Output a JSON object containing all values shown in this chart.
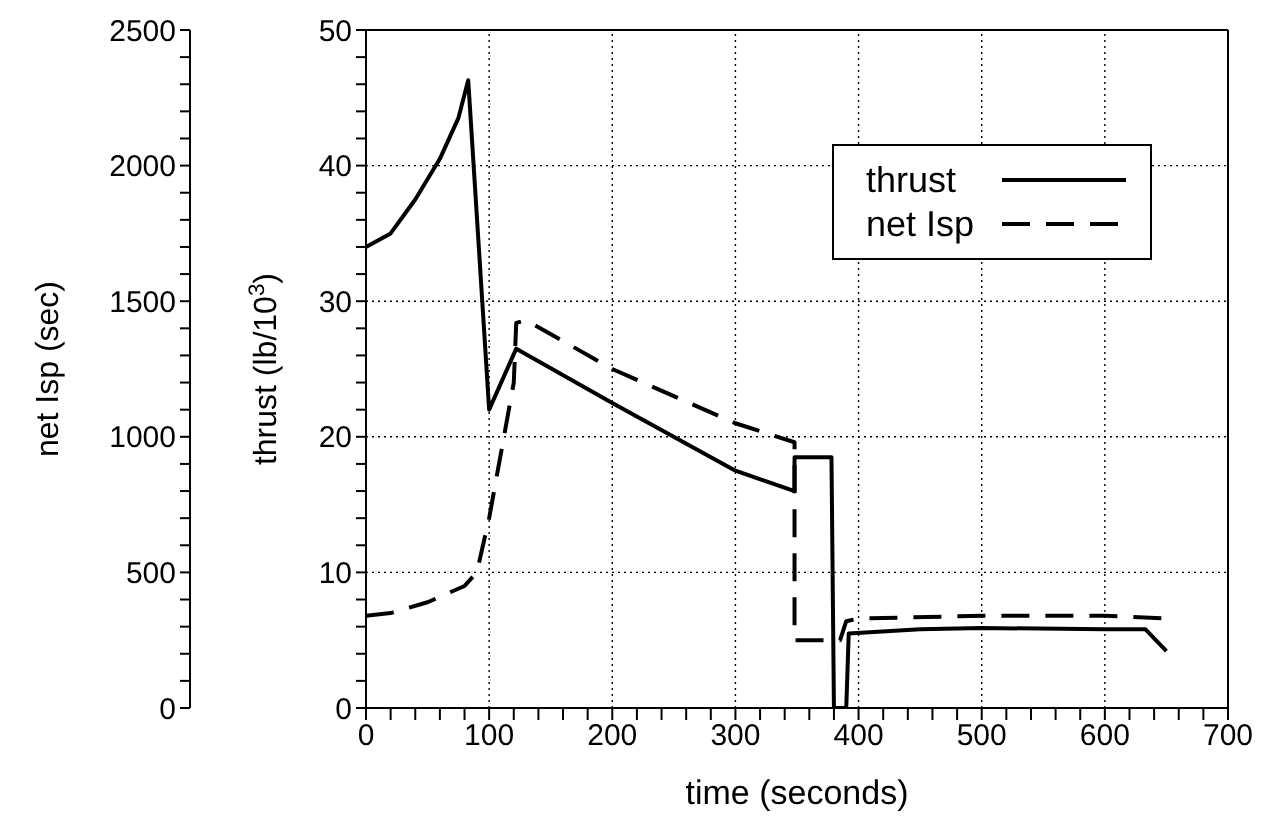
{
  "chart_data": {
    "type": "line",
    "xlabel": "time (seconds)",
    "ylabel": "thrust (lb/10$^{3}$)",
    "y2label": "net Isp (sec)",
    "xlim": [
      0,
      700
    ],
    "xticks": [
      0,
      {
        "value": 20,
        "label": null
      },
      {
        "value": 40,
        "label": null
      },
      {
        "value": 60,
        "label": null
      },
      {
        "value": 80,
        "label": null
      },
      100,
      {
        "value": 120,
        "label": null
      },
      {
        "value": 140,
        "label": null
      },
      {
        "value": 160,
        "label": null
      },
      {
        "value": 180,
        "label": null
      },
      200,
      {
        "value": 220,
        "label": null
      },
      {
        "value": 240,
        "label": null
      },
      {
        "value": 260,
        "label": null
      },
      {
        "value": 280,
        "label": null
      },
      300,
      {
        "value": 320,
        "label": null
      },
      {
        "value": 340,
        "label": null
      },
      {
        "value": 360,
        "label": null
      },
      {
        "value": 380,
        "label": null
      },
      400,
      {
        "value": 420,
        "label": null
      },
      {
        "value": 440,
        "label": null
      },
      {
        "value": 460,
        "label": null
      },
      {
        "value": 480,
        "label": null
      },
      500,
      {
        "value": 520,
        "label": null
      },
      {
        "value": 540,
        "label": null
      },
      {
        "value": 560,
        "label": null
      },
      {
        "value": 580,
        "label": null
      },
      600,
      {
        "value": 620,
        "label": null
      },
      {
        "value": 640,
        "label": null
      },
      {
        "value": 660,
        "label": null
      },
      {
        "value": 680,
        "label": null
      },
      700
    ],
    "ylim": [
      0,
      50
    ],
    "yticks": [
      0,
      {
        "value": 2,
        "label": null
      },
      {
        "value": 4,
        "label": null
      },
      {
        "value": 6,
        "label": null
      },
      {
        "value": 8,
        "label": null
      },
      10,
      {
        "value": 12,
        "label": null
      },
      {
        "value": 14,
        "label": null
      },
      {
        "value": 16,
        "label": null
      },
      {
        "value": 18,
        "label": null
      },
      20,
      {
        "value": 22,
        "label": null
      },
      {
        "value": 24,
        "label": null
      },
      {
        "value": 26,
        "label": null
      },
      {
        "value": 28,
        "label": null
      },
      30,
      {
        "value": 32,
        "label": null
      },
      {
        "value": 34,
        "label": null
      },
      {
        "value": 36,
        "label": null
      },
      {
        "value": 38,
        "label": null
      },
      40,
      {
        "value": 42,
        "label": null
      },
      {
        "value": 44,
        "label": null
      },
      {
        "value": 46,
        "label": null
      },
      {
        "value": 48,
        "label": null
      },
      50
    ],
    "y2lim": [
      0,
      2500
    ],
    "y2ticks": [
      0,
      {
        "value": 100,
        "label": null
      },
      {
        "value": 200,
        "label": null
      },
      {
        "value": 300,
        "label": null
      },
      {
        "value": 400,
        "label": null
      },
      500,
      {
        "value": 600,
        "label": null
      },
      {
        "value": 700,
        "label": null
      },
      {
        "value": 800,
        "label": null
      },
      {
        "value": 900,
        "label": null
      },
      1000,
      {
        "value": 1100,
        "label": null
      },
      {
        "value": 1200,
        "label": null
      },
      {
        "value": 1300,
        "label": null
      },
      {
        "value": 1400,
        "label": null
      },
      1500,
      {
        "value": 1600,
        "label": null
      },
      {
        "value": 1700,
        "label": null
      },
      {
        "value": 1800,
        "label": null
      },
      {
        "value": 1900,
        "label": null
      },
      2000,
      {
        "value": 2100,
        "label": null
      },
      {
        "value": 2200,
        "label": null
      },
      {
        "value": 2300,
        "label": null
      },
      {
        "value": 2400,
        "label": null
      },
      2500
    ],
    "grid": true,
    "legend": "top right",
    "marker": "none",
    "series": [
      {
        "name": "thrust",
        "color": "#000000",
        "line_style": "solid",
        "x": [
          0,
          20,
          40,
          60,
          75,
          83,
          100,
          122,
          200,
          300,
          348,
          348,
          378,
          380,
          390,
          392,
          450,
          500,
          600,
          633,
          650
        ],
        "values": [
          34,
          35,
          37.5,
          40.5,
          43.5,
          46.3,
          22,
          26.5,
          22.5,
          17.5,
          16,
          18.5,
          18.5,
          0,
          0,
          5.5,
          5.8,
          5.9,
          5.8,
          5.8,
          4.2
        ]
      },
      {
        "name": "net Isp",
        "color": "#000000",
        "line_style": "dashed",
        "axis": "y2",
        "x": [
          0,
          20,
          50,
          80,
          90,
          100,
          110,
          120,
          122,
          130,
          200,
          300,
          348,
          348,
          385,
          390,
          400,
          500,
          600,
          650
        ],
        "values": [
          340,
          350,
          390,
          450,
          500,
          700,
          950,
          1200,
          1420,
          1430,
          1250,
          1050,
          980,
          250,
          250,
          320,
          330,
          340,
          340,
          330
        ]
      }
    ]
  }
}
